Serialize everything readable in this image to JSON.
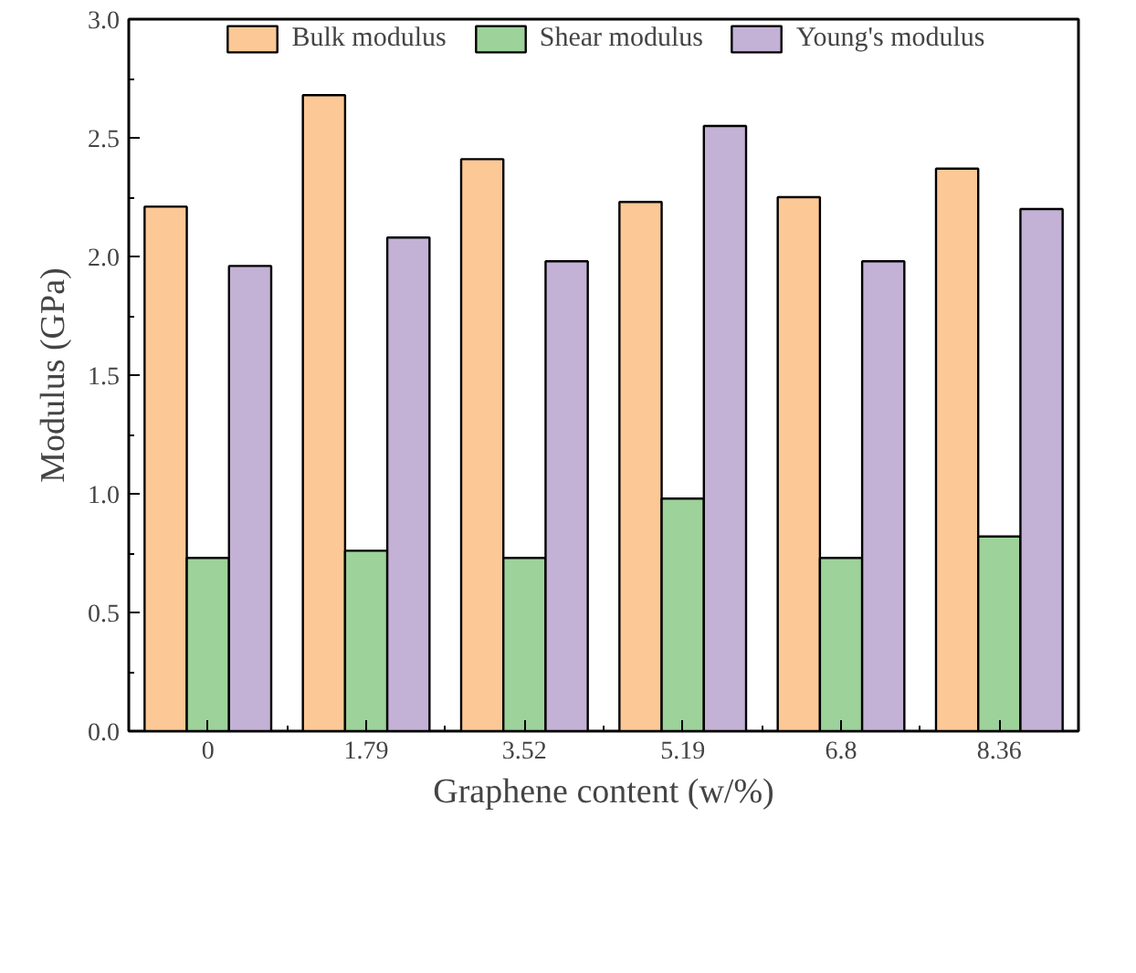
{
  "chart_data": {
    "type": "bar",
    "xlabel": "Graphene content (w/%)",
    "ylabel": "Modulus (GPa)",
    "categories": [
      "0",
      "1.79",
      "3.52",
      "5.19",
      "6.8",
      "8.36"
    ],
    "series": [
      {
        "name": "Bulk modulus",
        "color": "#fcc896",
        "values": [
          2.21,
          2.68,
          2.41,
          2.23,
          2.25,
          2.37
        ]
      },
      {
        "name": "Shear modulus",
        "color": "#9dd29a",
        "values": [
          0.73,
          0.76,
          0.73,
          0.98,
          0.73,
          0.82
        ]
      },
      {
        "name": "Young's modulus",
        "color": "#c3b1d6",
        "values": [
          1.96,
          2.08,
          1.98,
          2.55,
          1.98,
          2.2
        ]
      }
    ],
    "ylim": [
      0,
      3.0
    ],
    "yticks": [
      {
        "value": 0,
        "label": "0.0"
      },
      {
        "value": 0.5,
        "label": "0.5"
      },
      {
        "value": 1.0,
        "label": "1.0"
      },
      {
        "value": 1.5,
        "label": "1.5"
      },
      {
        "value": 2.0,
        "label": "2.0"
      },
      {
        "value": 2.5,
        "label": "2.5"
      },
      {
        "value": 3.0,
        "label": "3.0"
      }
    ],
    "grid": false,
    "legend": "top"
  }
}
